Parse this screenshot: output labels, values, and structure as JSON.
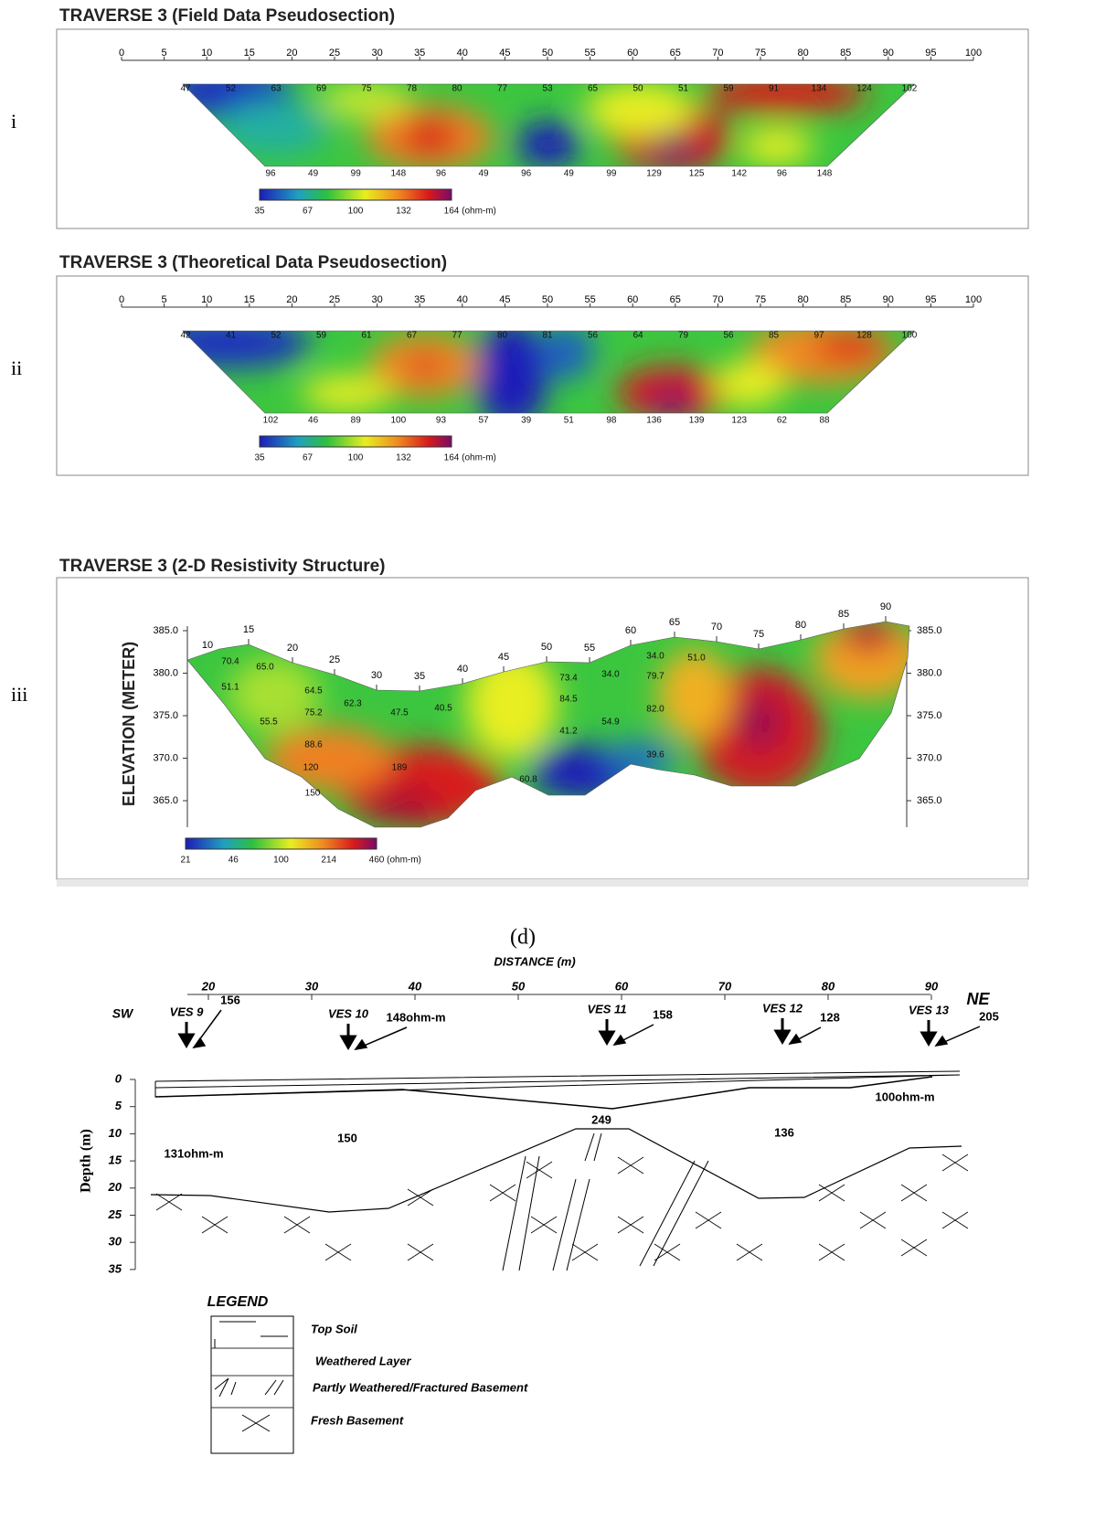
{
  "panels": [
    {
      "marker": "i",
      "title": "TRAVERSE 3 (Field Data Pseudosection)",
      "distance_ticks": [
        0,
        5,
        10,
        15,
        20,
        25,
        30,
        35,
        40,
        45,
        50,
        55,
        60,
        65,
        70,
        75,
        80,
        85,
        90,
        95,
        100
      ],
      "top_row": [
        47,
        52,
        63,
        69,
        75,
        78,
        80,
        77,
        53,
        65,
        50,
        51,
        59,
        91,
        134,
        124,
        102
      ],
      "bottom_row": [
        96,
        49,
        99,
        148,
        96,
        49,
        96,
        49,
        99,
        129,
        125,
        142,
        96,
        148
      ],
      "colorbar_ticks": [
        35,
        67,
        100,
        132,
        164
      ],
      "colorbar_unit": "(ohm-m)"
    },
    {
      "marker": "ii",
      "title": "TRAVERSE 3 (Theoretical Data Pseudosection)",
      "distance_ticks": [
        0,
        5,
        10,
        15,
        20,
        25,
        30,
        35,
        40,
        45,
        50,
        55,
        60,
        65,
        70,
        75,
        80,
        85,
        90,
        95,
        100
      ],
      "top_row": [
        42,
        41,
        52,
        59,
        61,
        67,
        77,
        80,
        81,
        56,
        64,
        79,
        56,
        85,
        97,
        128,
        100
      ],
      "bottom_row": [
        102,
        46,
        89,
        100,
        93,
        57,
        39,
        51,
        98,
        136,
        139,
        123,
        62,
        88
      ],
      "colorbar_ticks": [
        35,
        67,
        100,
        132,
        164
      ],
      "colorbar_unit": "(ohm-m)"
    },
    {
      "marker": "iii",
      "title": "TRAVERSE 3 (2-D Resistivity Structure)",
      "y_label": "ELEVATION (METER)",
      "elevation_ticks": [
        {
          "value": 385,
          "label": "385.0"
        },
        {
          "value": 380,
          "label": "380.0"
        },
        {
          "value": 375,
          "label": "375.0"
        },
        {
          "value": 370,
          "label": "370.0"
        },
        {
          "value": 365,
          "label": "365.0"
        }
      ],
      "surface_ticks": [
        10,
        15,
        20,
        25,
        30,
        35,
        40,
        45,
        50,
        55,
        60,
        65,
        70,
        75,
        80,
        85,
        90
      ],
      "values": [
        "70.4",
        "65.0",
        "64.5",
        "62.3",
        "47.5",
        "40.5",
        "73.4",
        "34.0",
        "34.0",
        "51.0",
        "51.1",
        "75.2",
        "84.5",
        "79.7",
        "55.5",
        "88.6",
        "41.2",
        "54.9",
        "82.0",
        "120",
        "189",
        "39.6",
        "150",
        "60.8"
      ],
      "colorbar_ticks": [
        21,
        46,
        100,
        214,
        460
      ],
      "colorbar_unit": "(ohm-m)"
    }
  ],
  "figure_label": "(d)",
  "section": {
    "x_label": "DISTANCE (m)",
    "distance_ticks": [
      20,
      30,
      40,
      50,
      60,
      70,
      80,
      90
    ],
    "y_label": "Depth (m)",
    "depth_ticks": [
      0,
      5,
      10,
      15,
      20,
      25,
      30,
      35
    ],
    "sw": "SW",
    "ne": "NE",
    "ves": [
      {
        "name": "VES 9",
        "value": "156"
      },
      {
        "name": "VES 10",
        "value": "148ohm-m"
      },
      {
        "name": "VES 11",
        "value": "158"
      },
      {
        "name": "VES 12",
        "value": "128"
      },
      {
        "name": "VES 13",
        "value": "205"
      }
    ],
    "layers": [
      "100ohm-m",
      "249",
      "150",
      "136",
      "131ohm-m"
    ],
    "legend_title": "LEGEND",
    "legend": [
      "Top Soil",
      "Weathered Layer",
      "Partly Weathered/Fractured Basement",
      "Fresh Basement"
    ]
  }
}
